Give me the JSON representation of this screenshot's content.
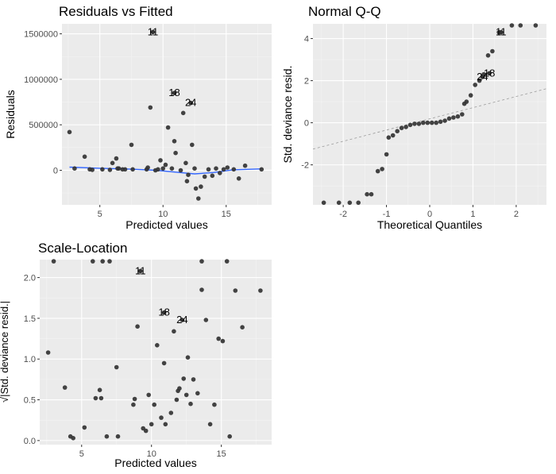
{
  "chart_data": [
    {
      "type": "scatter",
      "title": "Residuals vs Fitted",
      "xlabel": "Predicted values",
      "ylabel": "Residuals",
      "xlim": [
        2.0,
        18.6
      ],
      "ylim": [
        -380000,
        1610000
      ],
      "xticks": [
        5,
        10,
        15
      ],
      "xtick_labels": [
        "5",
        "10",
        "15"
      ],
      "yticks": [
        0,
        500000,
        1000000,
        1500000
      ],
      "ytick_labels": [
        "0",
        "500000",
        "1000000",
        "1500000"
      ],
      "points": [
        [
          2.6,
          420000
        ],
        [
          3.0,
          20000
        ],
        [
          3.8,
          150000
        ],
        [
          4.2,
          10000
        ],
        [
          4.4,
          5000
        ],
        [
          5.2,
          10000
        ],
        [
          5.8,
          5000
        ],
        [
          6.0,
          80000
        ],
        [
          6.3,
          130000
        ],
        [
          6.4,
          20000
        ],
        [
          6.5,
          20000
        ],
        [
          6.8,
          10000
        ],
        [
          7.0,
          10000
        ],
        [
          7.5,
          280000
        ],
        [
          7.6,
          10000
        ],
        [
          8.7,
          10000
        ],
        [
          8.8,
          30000
        ],
        [
          9.0,
          690000
        ],
        [
          9.4,
          0
        ],
        [
          9.6,
          10000
        ],
        [
          9.8,
          110000
        ],
        [
          10.0,
          20000
        ],
        [
          10.2,
          60000
        ],
        [
          10.4,
          470000
        ],
        [
          10.7,
          20000
        ],
        [
          10.9,
          320000
        ],
        [
          11.0,
          190000
        ],
        [
          11.4,
          0
        ],
        [
          11.6,
          630000
        ],
        [
          11.8,
          80000
        ],
        [
          11.9,
          -120000
        ],
        [
          12.0,
          -50000
        ],
        [
          12.3,
          280000
        ],
        [
          12.5,
          20000
        ],
        [
          12.6,
          -200000
        ],
        [
          12.8,
          -310000
        ],
        [
          13.0,
          -180000
        ],
        [
          13.3,
          -70000
        ],
        [
          13.6,
          10000
        ],
        [
          13.9,
          -60000
        ],
        [
          14.2,
          20000
        ],
        [
          14.5,
          -30000
        ],
        [
          14.8,
          10000
        ],
        [
          15.1,
          30000
        ],
        [
          15.6,
          10000
        ],
        [
          16.0,
          -90000
        ],
        [
          16.5,
          50000
        ],
        [
          17.8,
          10000
        ]
      ],
      "smoother": [
        [
          2.6,
          35000
        ],
        [
          5.0,
          22000
        ],
        [
          7.5,
          12000
        ],
        [
          9.5,
          0
        ],
        [
          11.0,
          -20000
        ],
        [
          12.5,
          -40000
        ],
        [
          14.0,
          -25000
        ],
        [
          15.5,
          5000
        ],
        [
          17.8,
          15000
        ]
      ],
      "annotations": [
        {
          "label": "11",
          "x": 9.2,
          "y": 1520000
        },
        {
          "label": "18",
          "x": 10.9,
          "y": 850000
        },
        {
          "label": "24",
          "x": 12.2,
          "y": 740000
        }
      ]
    },
    {
      "type": "scatter",
      "title": "Normal Q-Q",
      "xlabel": "Theoretical Quantiles",
      "ylabel": "Std. deviance resid.",
      "xlim": [
        -2.7,
        2.7
      ],
      "ylim": [
        -3.9,
        4.7
      ],
      "xticks": [
        -2,
        -1,
        0,
        1,
        2
      ],
      "xtick_labels": [
        "-2",
        "-1",
        "0",
        "1",
        "2"
      ],
      "yticks": [
        -2,
        0,
        2,
        4
      ],
      "ytick_labels": [
        "-2",
        "0",
        "2",
        "4"
      ],
      "points": [
        [
          -2.45,
          -3.8
        ],
        [
          -2.1,
          -3.8
        ],
        [
          -1.85,
          -3.8
        ],
        [
          -1.65,
          -3.8
        ],
        [
          -1.45,
          -3.4
        ],
        [
          -1.35,
          -3.4
        ],
        [
          -1.2,
          -2.3
        ],
        [
          -1.1,
          -2.2
        ],
        [
          -1.0,
          -1.5
        ],
        [
          -0.95,
          -0.7
        ],
        [
          -0.85,
          -0.6
        ],
        [
          -0.75,
          -0.4
        ],
        [
          -0.65,
          -0.25
        ],
        [
          -0.55,
          -0.2
        ],
        [
          -0.45,
          -0.1
        ],
        [
          -0.35,
          -0.05
        ],
        [
          -0.25,
          -0.05
        ],
        [
          -0.15,
          0
        ],
        [
          -0.05,
          0
        ],
        [
          0.05,
          0
        ],
        [
          0.15,
          0
        ],
        [
          0.25,
          0.05
        ],
        [
          0.35,
          0.1
        ],
        [
          0.45,
          0.2
        ],
        [
          0.55,
          0.25
        ],
        [
          0.65,
          0.3
        ],
        [
          0.75,
          0.4
        ],
        [
          0.8,
          0.9
        ],
        [
          0.85,
          1.0
        ],
        [
          0.95,
          1.3
        ],
        [
          1.05,
          1.8
        ],
        [
          1.15,
          2.0
        ],
        [
          1.25,
          2.3
        ],
        [
          1.35,
          3.2
        ],
        [
          1.45,
          3.4
        ],
        [
          1.6,
          4.3
        ],
        [
          1.9,
          4.75
        ],
        [
          2.1,
          4.75
        ],
        [
          2.45,
          4.75
        ]
      ],
      "reference_line": [
        [
          -2.7,
          -1.25
        ],
        [
          2.7,
          1.62
        ]
      ],
      "annotations": [
        {
          "label": "11",
          "x": 1.65,
          "y": 4.3
        },
        {
          "label": "18",
          "x": 1.38,
          "y": 2.35
        },
        {
          "label": "24",
          "x": 1.22,
          "y": 2.18
        }
      ]
    },
    {
      "type": "scatter",
      "title": "Scale-Location",
      "xlabel": "Predicted values",
      "ylabel": "√|Std. deviance resid.|",
      "xlim": [
        2.0,
        18.6
      ],
      "ylim": [
        -0.05,
        2.22
      ],
      "xticks": [
        5,
        10,
        15
      ],
      "xtick_labels": [
        "5",
        "10",
        "15"
      ],
      "yticks": [
        0.0,
        0.5,
        1.0,
        1.5,
        2.0
      ],
      "ytick_labels": [
        "0.0",
        "0.5",
        "1.0",
        "1.5",
        "2.0"
      ],
      "points": [
        [
          2.6,
          1.08
        ],
        [
          3.0,
          2.2
        ],
        [
          3.8,
          0.65
        ],
        [
          4.2,
          0.05
        ],
        [
          4.4,
          0.03
        ],
        [
          5.2,
          0.16
        ],
        [
          5.8,
          2.2
        ],
        [
          6.0,
          0.52
        ],
        [
          6.3,
          0.62
        ],
        [
          6.4,
          0.52
        ],
        [
          6.5,
          2.2
        ],
        [
          6.8,
          0.05
        ],
        [
          7.0,
          2.2
        ],
        [
          7.5,
          0.9
        ],
        [
          7.6,
          0.05
        ],
        [
          8.7,
          0.44
        ],
        [
          8.8,
          0.51
        ],
        [
          9.0,
          1.4
        ],
        [
          9.4,
          0.15
        ],
        [
          9.6,
          0.12
        ],
        [
          9.8,
          0.56
        ],
        [
          10.0,
          0.2
        ],
        [
          10.2,
          0.44
        ],
        [
          10.4,
          1.17
        ],
        [
          10.7,
          0.28
        ],
        [
          10.9,
          0.95
        ],
        [
          11.0,
          0.2
        ],
        [
          11.4,
          0.34
        ],
        [
          11.6,
          1.34
        ],
        [
          11.8,
          0.5
        ],
        [
          11.9,
          0.61
        ],
        [
          12.0,
          0.64
        ],
        [
          12.3,
          0.76
        ],
        [
          12.5,
          0.56
        ],
        [
          12.6,
          1.02
        ],
        [
          12.8,
          0.45
        ],
        [
          13.0,
          0.75
        ],
        [
          13.3,
          0.58
        ],
        [
          13.6,
          1.85
        ],
        [
          13.9,
          1.48
        ],
        [
          14.2,
          0.2
        ],
        [
          14.5,
          0.44
        ],
        [
          14.8,
          1.25
        ],
        [
          15.1,
          1.22
        ],
        [
          15.6,
          0.05
        ],
        [
          16.0,
          1.84
        ],
        [
          16.5,
          1.39
        ],
        [
          17.8,
          1.84
        ],
        [
          15.4,
          2.2
        ],
        [
          13.6,
          2.2
        ]
      ],
      "annotations": [
        {
          "label": "11",
          "x": 9.2,
          "y": 2.08
        },
        {
          "label": "18",
          "x": 10.9,
          "y": 1.57
        },
        {
          "label": "24",
          "x": 12.2,
          "y": 1.48
        }
      ]
    }
  ]
}
